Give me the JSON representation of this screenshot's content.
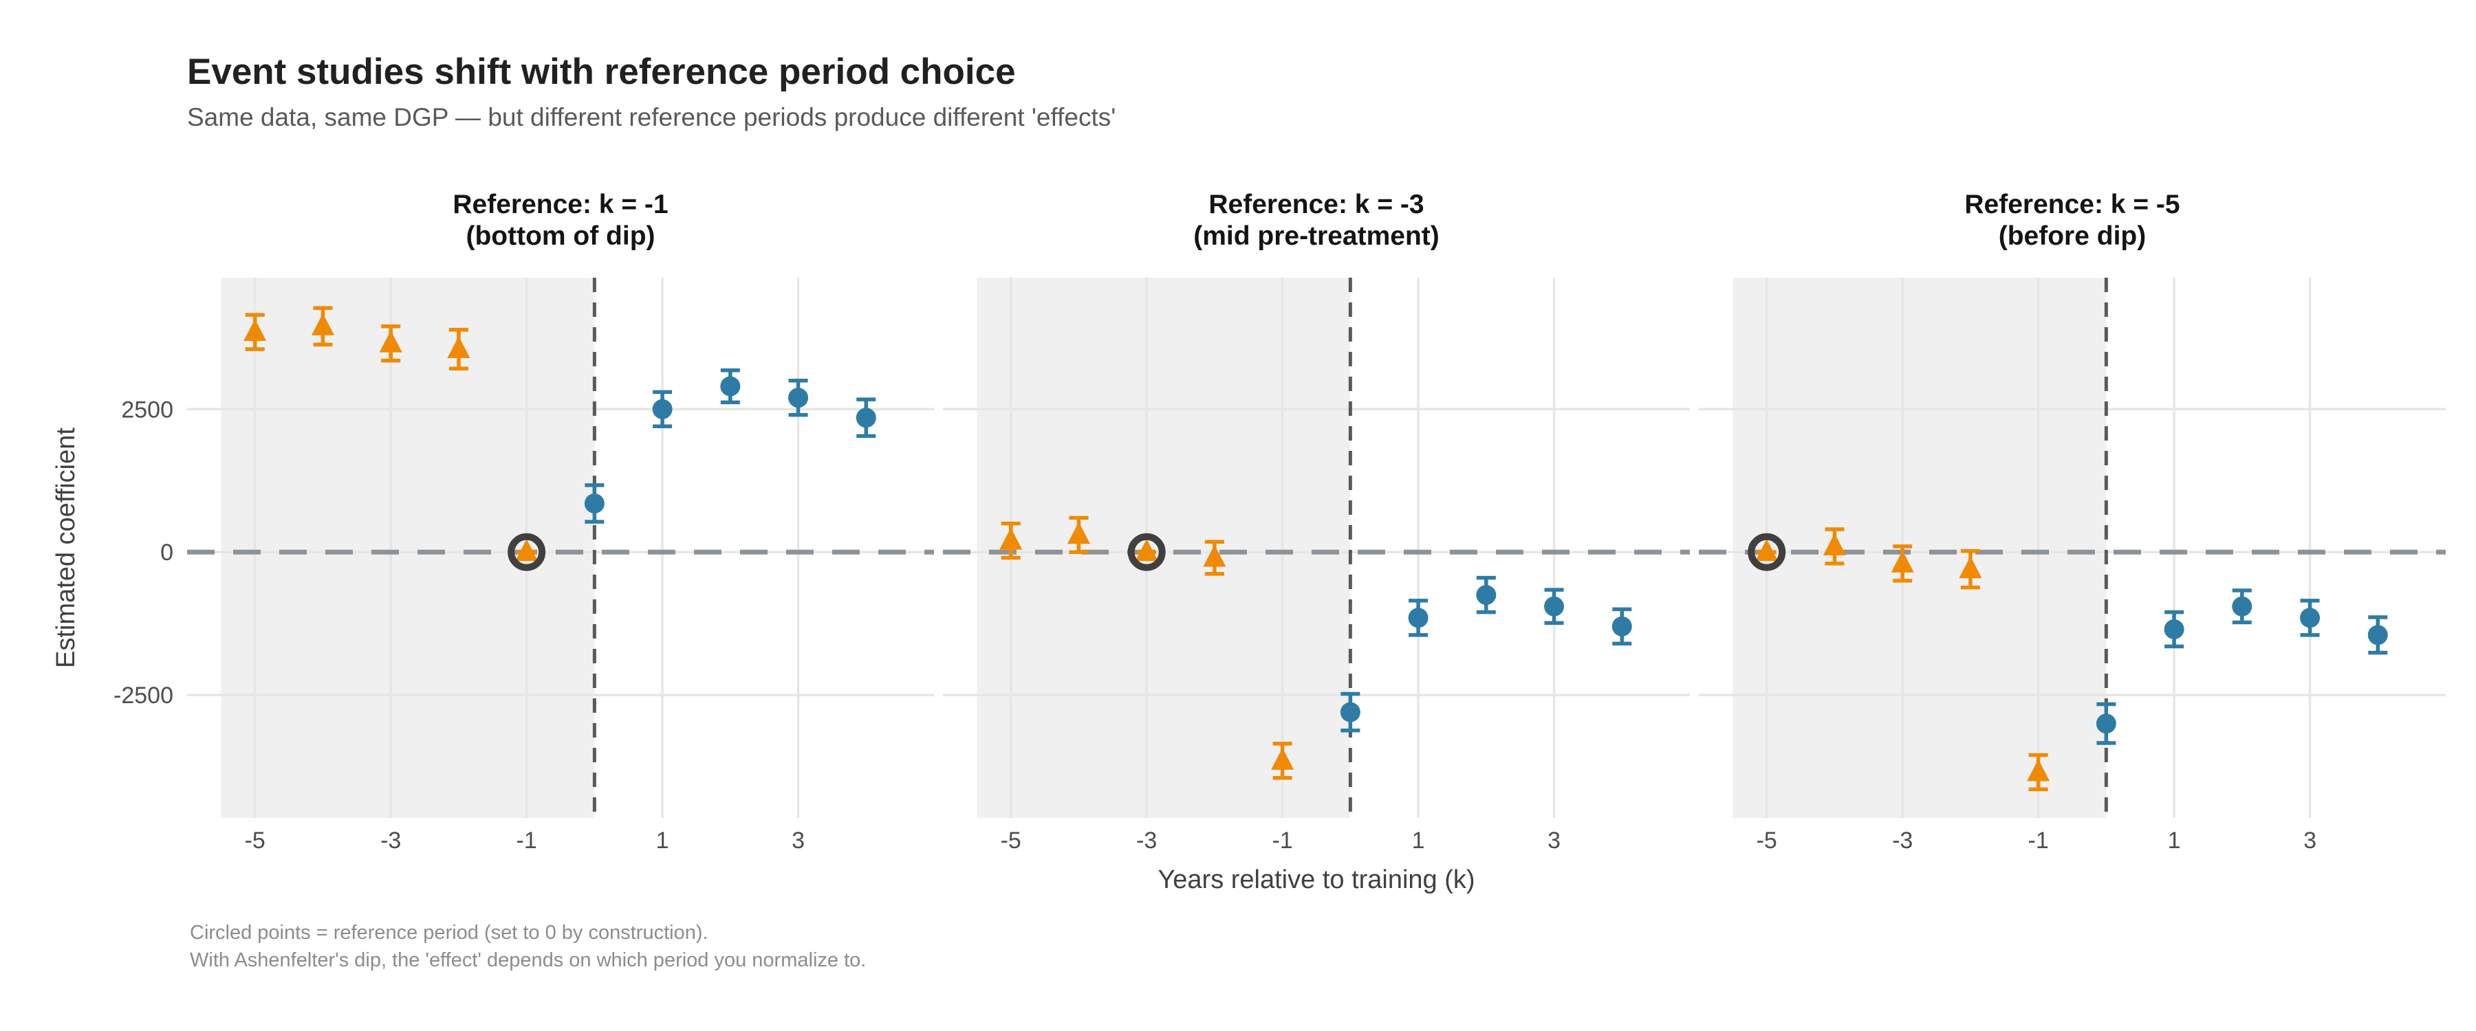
{
  "header": {
    "title": "Event studies shift with reference period choice",
    "subtitle": "Same data, same DGP — but different reference periods produce different 'effects'"
  },
  "caption": {
    "line1": "Circled points = reference period (set to 0 by construction).",
    "line2": "With Ashenfelter's dip, the 'effect' depends on which period you normalize to."
  },
  "axes": {
    "x_title": "Years relative to training (k)",
    "y_title": "Estimated coefficient",
    "x_tick_labels": [
      "-5",
      "-3",
      "-1",
      "1",
      "3"
    ],
    "y_tick_labels": [
      "2500",
      "0",
      "-2500"
    ]
  },
  "colors": {
    "background": "#FFFFFF",
    "pre_marker": "#F08A05",
    "post_marker": "#2E7CA5",
    "reference_ring": "#404040",
    "pretreatment_shade": "#F0F0F0",
    "gridline": "#E6E6E6",
    "zero_dash_line": "#8E9398",
    "treatment_dash_line": "#5A5A5A"
  },
  "chart_data": {
    "type": "scatter",
    "title": "Event studies shift with reference period choice",
    "subtitle": "Same data, same DGP — but different reference periods produce different 'effects'",
    "xlabel": "Years relative to training (k)",
    "ylabel": "Estimated coefficient",
    "xlim": [
      -6,
      5
    ],
    "ylim": [
      -4650,
      4800
    ],
    "x_ticks": [
      -5,
      -3,
      -1,
      1,
      3
    ],
    "y_ticks": [
      2500,
      0,
      -2500
    ],
    "grid": true,
    "legend": "none",
    "zero_line_y": 0,
    "treatment_line_x": 0,
    "shaded_pretreatment_region": [
      -5.5,
      0
    ],
    "marker_by_phase": {
      "pre": "triangle-up",
      "post": "circle"
    },
    "panels": [
      {
        "title_lines": [
          "Reference: k = -1",
          "(bottom of dip)"
        ],
        "reference_k": -1,
        "points": [
          {
            "k": -5,
            "estimate": 3850,
            "se": 300,
            "phase": "pre",
            "is_reference": false
          },
          {
            "k": -4,
            "estimate": 3950,
            "se": 320,
            "phase": "pre",
            "is_reference": false
          },
          {
            "k": -3,
            "estimate": 3650,
            "se": 300,
            "phase": "pre",
            "is_reference": false
          },
          {
            "k": -2,
            "estimate": 3550,
            "se": 340,
            "phase": "pre",
            "is_reference": false
          },
          {
            "k": -1,
            "estimate": 0,
            "se": 0,
            "phase": "pre",
            "is_reference": true
          },
          {
            "k": 0,
            "estimate": 850,
            "se": 320,
            "phase": "post",
            "is_reference": false
          },
          {
            "k": 1,
            "estimate": 2500,
            "se": 300,
            "phase": "post",
            "is_reference": false
          },
          {
            "k": 2,
            "estimate": 2900,
            "se": 280,
            "phase": "post",
            "is_reference": false
          },
          {
            "k": 3,
            "estimate": 2700,
            "se": 300,
            "phase": "post",
            "is_reference": false
          },
          {
            "k": 4,
            "estimate": 2350,
            "se": 320,
            "phase": "post",
            "is_reference": false
          }
        ]
      },
      {
        "title_lines": [
          "Reference: k = -3",
          "(mid pre-treatment)"
        ],
        "reference_k": -3,
        "points": [
          {
            "k": -5,
            "estimate": 200,
            "se": 300,
            "phase": "pre",
            "is_reference": false
          },
          {
            "k": -4,
            "estimate": 300,
            "se": 300,
            "phase": "pre",
            "is_reference": false
          },
          {
            "k": -3,
            "estimate": 0,
            "se": 0,
            "phase": "pre",
            "is_reference": true
          },
          {
            "k": -2,
            "estimate": -100,
            "se": 280,
            "phase": "pre",
            "is_reference": false
          },
          {
            "k": -1,
            "estimate": -3650,
            "se": 300,
            "phase": "pre",
            "is_reference": false
          },
          {
            "k": 0,
            "estimate": -2800,
            "se": 320,
            "phase": "post",
            "is_reference": false
          },
          {
            "k": 1,
            "estimate": -1150,
            "se": 300,
            "phase": "post",
            "is_reference": false
          },
          {
            "k": 2,
            "estimate": -750,
            "se": 300,
            "phase": "post",
            "is_reference": false
          },
          {
            "k": 3,
            "estimate": -950,
            "se": 290,
            "phase": "post",
            "is_reference": false
          },
          {
            "k": 4,
            "estimate": -1300,
            "se": 300,
            "phase": "post",
            "is_reference": false
          }
        ]
      },
      {
        "title_lines": [
          "Reference: k = -5",
          "(before dip)"
        ],
        "reference_k": -5,
        "points": [
          {
            "k": -5,
            "estimate": 0,
            "se": 0,
            "phase": "pre",
            "is_reference": true
          },
          {
            "k": -4,
            "estimate": 100,
            "se": 300,
            "phase": "pre",
            "is_reference": false
          },
          {
            "k": -3,
            "estimate": -200,
            "se": 300,
            "phase": "pre",
            "is_reference": false
          },
          {
            "k": -2,
            "estimate": -300,
            "se": 320,
            "phase": "pre",
            "is_reference": false
          },
          {
            "k": -1,
            "estimate": -3850,
            "se": 300,
            "phase": "pre",
            "is_reference": false
          },
          {
            "k": 0,
            "estimate": -3000,
            "se": 340,
            "phase": "post",
            "is_reference": false
          },
          {
            "k": 1,
            "estimate": -1350,
            "se": 300,
            "phase": "post",
            "is_reference": false
          },
          {
            "k": 2,
            "estimate": -950,
            "se": 280,
            "phase": "post",
            "is_reference": false
          },
          {
            "k": 3,
            "estimate": -1150,
            "se": 300,
            "phase": "post",
            "is_reference": false
          },
          {
            "k": 4,
            "estimate": -1450,
            "se": 310,
            "phase": "post",
            "is_reference": false
          }
        ]
      }
    ]
  }
}
